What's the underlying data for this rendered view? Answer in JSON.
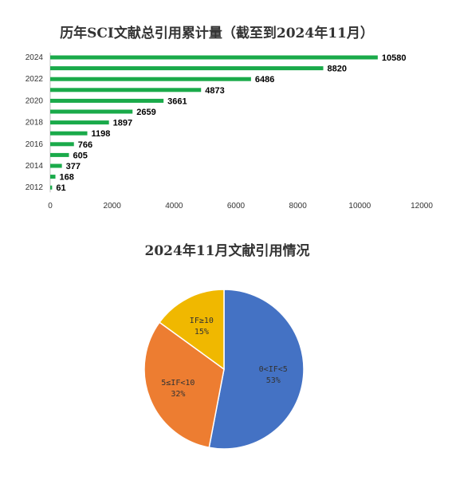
{
  "chart_data": [
    {
      "type": "bar",
      "orientation": "horizontal",
      "title": "历年SCI文献总引用累计量（截至到2024年11月）",
      "categories": [
        "2024",
        "2023",
        "2022",
        "2021",
        "2020",
        "2019",
        "2018",
        "2017",
        "2016",
        "2015",
        "2014",
        "2013",
        "2012"
      ],
      "category_labels_shown": [
        "2024",
        "",
        "2022",
        "",
        "2020",
        "",
        "2018",
        "",
        "2016",
        "",
        "2014",
        "",
        "2012"
      ],
      "values": [
        10580,
        8820,
        6486,
        4873,
        3661,
        2659,
        1897,
        1198,
        766,
        605,
        377,
        168,
        61
      ],
      "xlim": [
        0,
        12000
      ],
      "xticks": [
        0,
        2000,
        4000,
        6000,
        8000,
        10000,
        12000
      ],
      "grid": false,
      "data_labels": true,
      "color": "#1aaa4a"
    },
    {
      "type": "pie",
      "title": "2024年11月文献引用情况",
      "slices": [
        {
          "name": "0<IF<5",
          "percent_label": "53%",
          "value": 53,
          "color": "#4472c4"
        },
        {
          "name": "5≤IF<10",
          "percent_label": "32%",
          "value": 32,
          "color": "#ed7d31"
        },
        {
          "name": "IF≥10",
          "percent_label": "15%",
          "value": 15,
          "color": "#f0b800"
        }
      ]
    }
  ]
}
